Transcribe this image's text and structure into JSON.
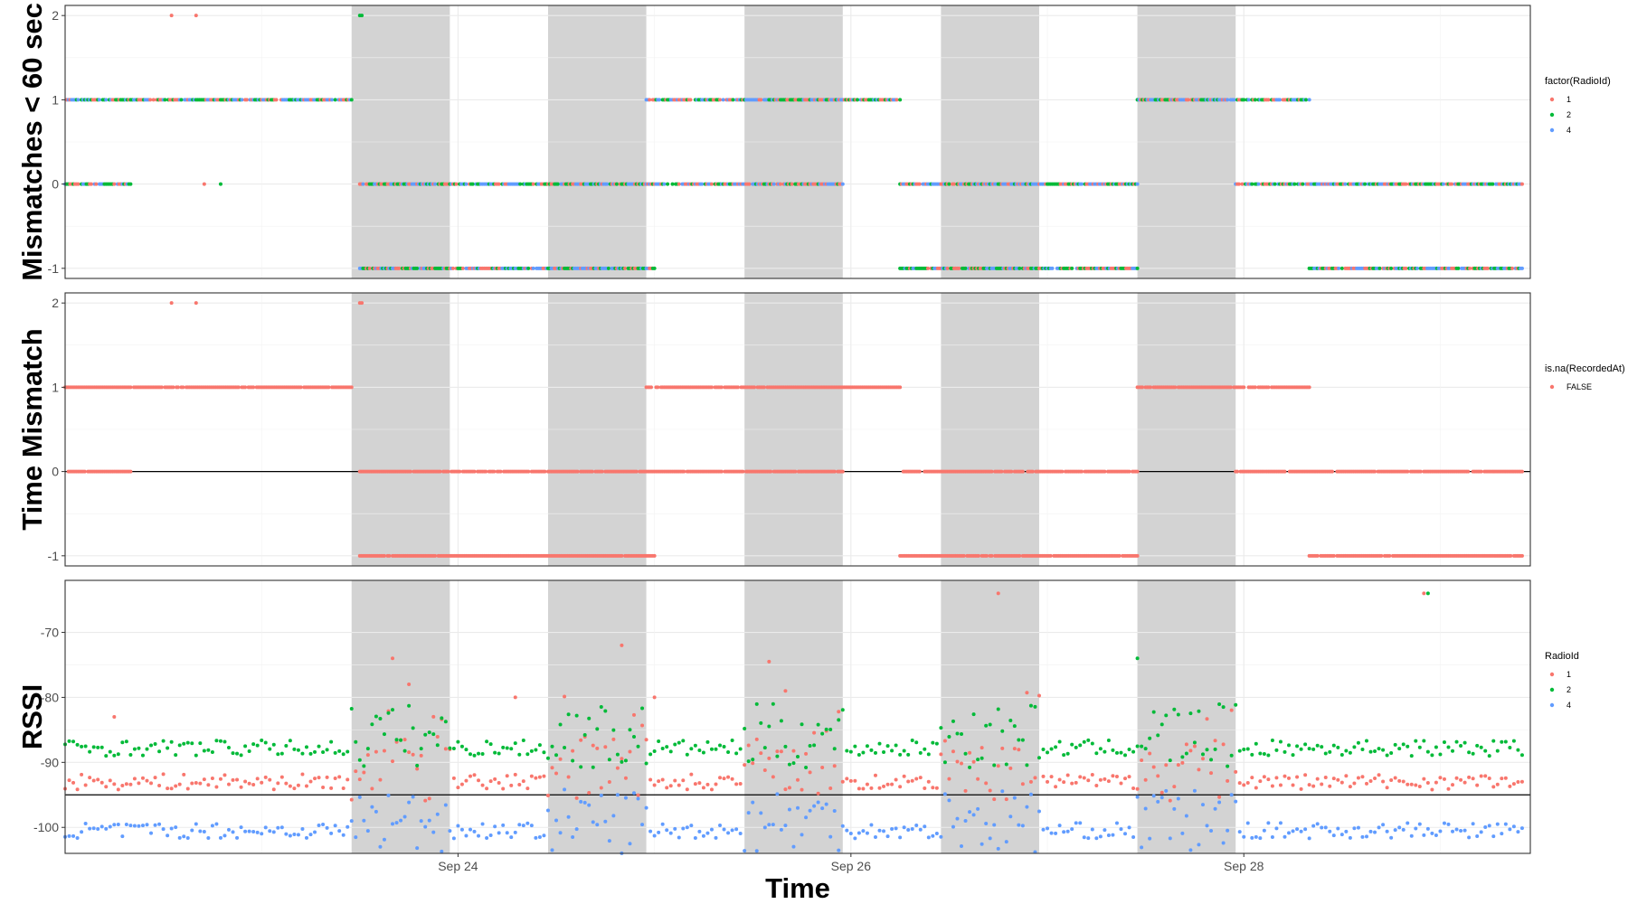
{
  "chart_data": {
    "type": "scatter",
    "xlabel": "Time",
    "x_axis": {
      "unit": "date",
      "range": [
        "2023-09-22T00:00",
        "2023-09-29T11:00"
      ],
      "ticks": [
        {
          "value": "2023-09-24T00:00",
          "label": "Sep 24"
        },
        {
          "value": "2023-09-26T00:00",
          "label": "Sep 26"
        },
        {
          "value": "2023-09-28T00:00",
          "label": "Sep 28"
        }
      ]
    },
    "shaded_periods": [
      [
        "2023-09-23T11:00",
        "2023-09-23T23:00"
      ],
      [
        "2023-09-24T11:00",
        "2023-09-24T23:00"
      ],
      [
        "2023-09-25T11:00",
        "2023-09-25T23:00"
      ],
      [
        "2023-09-26T11:00",
        "2023-09-26T23:00"
      ],
      [
        "2023-09-27T11:00",
        "2023-09-27T23:00"
      ]
    ],
    "grid": true,
    "panels": [
      {
        "id": "mismatch60",
        "ylabel": "Mismatches < 60 sec",
        "ylim": [
          -1.12,
          2.12
        ],
        "yticks": [
          -1,
          0,
          1,
          2
        ],
        "legend": {
          "title": "factor(RadioId)",
          "position": "right",
          "items": [
            {
              "label": "1",
              "color": "#F8766D"
            },
            {
              "label": "2",
              "color": "#00BA38"
            },
            {
              "label": "4",
              "color": "#619CFF"
            }
          ]
        },
        "segments": [
          {
            "y": 1,
            "from": "2023-09-22T00:00",
            "to": "2023-09-23T11:00"
          },
          {
            "y": 1,
            "from": "2023-09-24T23:00",
            "to": "2023-09-25T11:00"
          },
          {
            "y": 1,
            "from": "2023-09-25T11:00",
            "to": "2023-09-26T06:00"
          },
          {
            "y": 1,
            "from": "2023-09-27T11:00",
            "to": "2023-09-28T08:00"
          },
          {
            "y": 0,
            "from": "2023-09-22T00:00",
            "to": "2023-09-22T08:00"
          },
          {
            "y": 0,
            "from": "2023-09-23T12:00",
            "to": "2023-09-25T23:00"
          },
          {
            "y": 0,
            "from": "2023-09-26T06:00",
            "to": "2023-09-27T11:00"
          },
          {
            "y": 0,
            "from": "2023-09-27T23:00",
            "to": "2023-09-29T10:00"
          },
          {
            "y": -1,
            "from": "2023-09-23T12:00",
            "to": "2023-09-25T00:00"
          },
          {
            "y": -1,
            "from": "2023-09-26T06:00",
            "to": "2023-09-27T11:00"
          },
          {
            "y": -1,
            "from": "2023-09-28T08:00",
            "to": "2023-09-29T10:00"
          }
        ],
        "isolated": [
          {
            "x": "2023-09-22T13:00",
            "y": 2,
            "series": "1"
          },
          {
            "x": "2023-09-22T16:00",
            "y": 2,
            "series": "1"
          },
          {
            "x": "2023-09-23T12:00",
            "y": 2,
            "series": "2"
          },
          {
            "x": "2023-09-23T12:15",
            "y": 2,
            "series": "2"
          },
          {
            "x": "2023-09-22T17:00",
            "y": 0,
            "series": "1"
          },
          {
            "x": "2023-09-22T19:00",
            "y": 0,
            "series": "2"
          }
        ]
      },
      {
        "id": "timemismatch",
        "ylabel": "Time Mismatch",
        "ylim": [
          -1.12,
          2.12
        ],
        "yticks": [
          -1,
          0,
          1,
          2
        ],
        "reference_line": 0,
        "legend": {
          "title": "is.na(RecordedAt)",
          "position": "right",
          "items": [
            {
              "label": "FALSE",
              "color": "#F8766D"
            }
          ]
        },
        "segments": [
          {
            "y": 1,
            "from": "2023-09-22T00:00",
            "to": "2023-09-23T11:00"
          },
          {
            "y": 1,
            "from": "2023-09-24T23:00",
            "to": "2023-09-26T06:00"
          },
          {
            "y": 1,
            "from": "2023-09-27T11:00",
            "to": "2023-09-28T08:00"
          },
          {
            "y": 0,
            "from": "2023-09-22T00:00",
            "to": "2023-09-22T08:00"
          },
          {
            "y": 0,
            "from": "2023-09-23T12:00",
            "to": "2023-09-25T23:00"
          },
          {
            "y": 0,
            "from": "2023-09-26T06:00",
            "to": "2023-09-27T11:00"
          },
          {
            "y": 0,
            "from": "2023-09-27T23:00",
            "to": "2023-09-29T10:00"
          },
          {
            "y": -1,
            "from": "2023-09-23T12:00",
            "to": "2023-09-25T00:00"
          },
          {
            "y": -1,
            "from": "2023-09-26T06:00",
            "to": "2023-09-27T11:00"
          },
          {
            "y": -1,
            "from": "2023-09-28T08:00",
            "to": "2023-09-29T10:00"
          }
        ],
        "isolated": [
          {
            "x": "2023-09-22T13:00",
            "y": 2,
            "series": "FALSE"
          },
          {
            "x": "2023-09-22T16:00",
            "y": 2,
            "series": "FALSE"
          },
          {
            "x": "2023-09-23T12:00",
            "y": 2,
            "series": "FALSE"
          },
          {
            "x": "2023-09-23T12:15",
            "y": 2,
            "series": "FALSE"
          }
        ]
      },
      {
        "id": "rssi",
        "ylabel": "RSSI",
        "ylim": [
          -104,
          -62
        ],
        "yticks": [
          -100,
          -90,
          -80,
          -70
        ],
        "reference_line": -95,
        "legend": {
          "title": "RadioId",
          "position": "right",
          "items": [
            {
              "label": "1",
              "color": "#F8766D"
            },
            {
              "label": "2",
              "color": "#00BA38"
            },
            {
              "label": "4",
              "color": "#619CFF"
            }
          ]
        },
        "series": [
          {
            "name": "1",
            "color": "#F8766D",
            "typical": -93,
            "typical_dark": -91,
            "sample_every_hours": 0.5
          },
          {
            "name": "2",
            "color": "#00BA38",
            "typical": -87.8,
            "typical_dark": -86,
            "sample_every_hours": 0.5
          },
          {
            "name": "4",
            "color": "#619CFF",
            "typical": -100.5,
            "typical_dark": -99,
            "sample_every_hours": 0.5
          }
        ],
        "notable_points": [
          {
            "x": "2023-09-22T06:00",
            "y": -83,
            "series": "1"
          },
          {
            "x": "2023-09-23T16:00",
            "y": -74,
            "series": "1"
          },
          {
            "x": "2023-09-23T18:00",
            "y": -78,
            "series": "1"
          },
          {
            "x": "2023-09-24T07:00",
            "y": -80,
            "series": "1"
          },
          {
            "x": "2023-09-24T20:00",
            "y": -72,
            "series": "1"
          },
          {
            "x": "2023-09-25T00:00",
            "y": -80,
            "series": "1"
          },
          {
            "x": "2023-09-25T14:00",
            "y": -74.5,
            "series": "1"
          },
          {
            "x": "2023-09-25T16:00",
            "y": -79,
            "series": "1"
          },
          {
            "x": "2023-09-26T18:00",
            "y": -64,
            "series": "1"
          },
          {
            "x": "2023-09-27T11:00",
            "y": -74,
            "series": "2"
          },
          {
            "x": "2023-09-28T22:00",
            "y": -64,
            "series": "1"
          },
          {
            "x": "2023-09-28T22:30",
            "y": -64,
            "series": "2"
          }
        ]
      }
    ]
  }
}
